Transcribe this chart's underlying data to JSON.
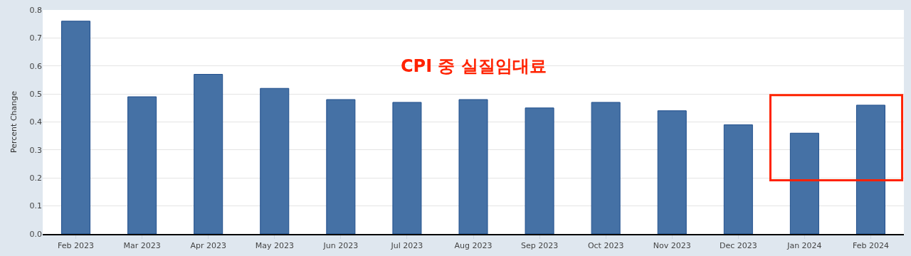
{
  "chart_data": {
    "type": "bar",
    "annotations": [
      "CPI 중 실질임대료"
    ],
    "ylabel": "Percent Change",
    "categories": [
      "Feb 2023",
      "Mar 2023",
      "Apr 2023",
      "May 2023",
      "Jun 2023",
      "Jul 2023",
      "Aug 2023",
      "Sep 2023",
      "Oct 2023",
      "Nov 2023",
      "Dec 2023",
      "Jan 2024",
      "Feb 2024"
    ],
    "values": [
      0.76,
      0.49,
      0.57,
      0.52,
      0.48,
      0.47,
      0.48,
      0.45,
      0.47,
      0.44,
      0.39,
      0.36,
      0.46
    ],
    "color": "#4571a5",
    "ylim": [
      0,
      0.8
    ],
    "yticks": [
      {
        "value": 0,
        "label": "0.0"
      },
      0.1,
      0.2,
      0.3,
      0.4,
      0.5,
      0.6,
      0.7,
      0.8
    ],
    "grid": "y"
  }
}
